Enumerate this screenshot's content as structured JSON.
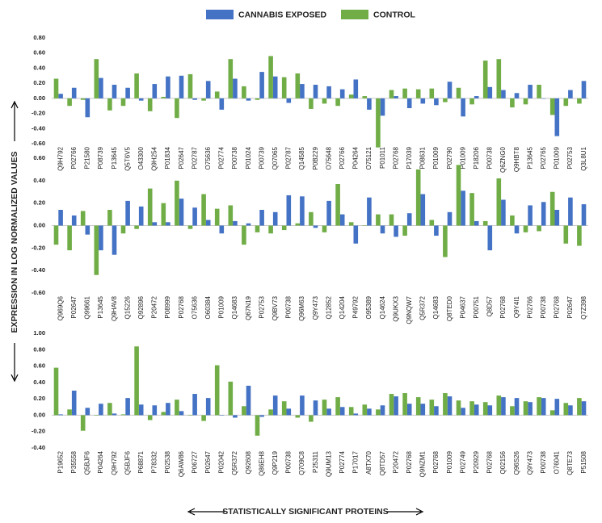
{
  "chart_data": [
    {
      "type": "bar",
      "ylabel": "EXPRESSION IN LOG NORMALIZED VALUES",
      "categories": [
        "Q9H792",
        "P02766",
        "P21580",
        "P08739",
        "P13645",
        "Q5T6V5",
        "O43300",
        "Q9H254",
        "P01834",
        "P02647",
        "P02787",
        "O75636",
        "P02774",
        "P00738",
        "P01024",
        "P00739",
        "Q07065",
        "P02787",
        "Q14585",
        "P0B229",
        "O75648",
        "P02766",
        "P04264",
        "O75121",
        "P01011",
        "P02768",
        "P17039",
        "P08631",
        "P01009",
        "P02790",
        "P01009",
        "P18206",
        "P00738",
        "Q6ZNG0",
        "Q9HBT8",
        "P13645",
        "P02765",
        "P01009",
        "P02753",
        "Q3L8U1"
      ],
      "series": [
        {
          "name": "CANNABIS EXPOSED",
          "color": "#4472c4",
          "values": [
            0.06,
            0.14,
            -0.25,
            0.27,
            0.18,
            0.14,
            -0.03,
            0.19,
            0.29,
            0.3,
            -0.02,
            0.23,
            -0.15,
            0.26,
            -0.03,
            0.35,
            0.29,
            -0.06,
            0.19,
            0.18,
            0.16,
            0.12,
            0.25,
            -0.15,
            -0.23,
            0.03,
            -0.13,
            -0.07,
            -0.09,
            0.22,
            -0.24,
            0.03,
            0.15,
            0.11,
            0.07,
            0.18,
            0.0,
            -0.5,
            0.11,
            0.23
          ]
        },
        {
          "name": "CONTROL",
          "color": "#70ad47",
          "values": [
            0.26,
            -0.1,
            -0.02,
            0.52,
            -0.16,
            -0.1,
            0.33,
            -0.17,
            0.02,
            -0.26,
            0.32,
            -0.03,
            0.09,
            0.52,
            0.16,
            -0.02,
            0.56,
            0.28,
            0.33,
            -0.14,
            -0.07,
            -0.1,
            0.05,
            0.03,
            -0.65,
            0.11,
            0.13,
            0.12,
            0.13,
            -0.05,
            0.14,
            -0.08,
            0.5,
            0.52,
            -0.12,
            -0.08,
            0.18,
            -0.22,
            -0.1,
            -0.07
          ]
        }
      ],
      "ylim": [
        -0.6,
        0.8
      ],
      "yticks": [
        {
          "value": -0.6,
          "label": "-0.60"
        },
        {
          "value": -0.4,
          "label": "-0.40"
        },
        {
          "value": -0.2,
          "label": "-0.20"
        },
        {
          "value": 0,
          "label": "0.00"
        },
        {
          "value": 0.2,
          "label": "0.20"
        },
        {
          "value": 0.4,
          "label": "0.40"
        },
        {
          "value": 0.6,
          "label": "0.60"
        },
        {
          "value": 0.8,
          "label": "0.80"
        }
      ]
    },
    {
      "type": "bar",
      "categories": [
        "Q969Q6",
        "P02647",
        "Q99661",
        "P13645",
        "Q9HAV8",
        "Q15226",
        "Q92896",
        "P20472",
        "P08999",
        "P02768",
        "O75636",
        "O60384",
        "P01009",
        "Q14683",
        "Q67N19",
        "P02753",
        "Q9BV73",
        "P00738",
        "Q96M63",
        "Q9Y473",
        "Q12852",
        "Q14204",
        "P49792",
        "O95389",
        "Q14624",
        "Q9UKX3",
        "Q9NQW7",
        "Q5R372",
        "Q14683",
        "Q8TED0",
        "P04637",
        "P00751",
        "Q8D57",
        "P02768",
        "Q9Y4I1",
        "P02766",
        "P00738",
        "P02768",
        "P02647",
        "Q7Z398"
      ],
      "series": [
        {
          "color": "#4472c4",
          "values": [
            0.14,
            0.09,
            -0.08,
            -0.22,
            -0.26,
            0.22,
            0.17,
            0.03,
            0.03,
            0.24,
            0.16,
            0.05,
            -0.07,
            0.04,
            0.02,
            0.14,
            0.12,
            0.27,
            0.26,
            -0.02,
            0.22,
            0.1,
            -0.16,
            0.25,
            -0.07,
            -0.1,
            0.11,
            0.28,
            -0.09,
            0.12,
            0.31,
            0.04,
            -0.22,
            0.23,
            -0.07,
            0.18,
            0.21,
            0.14,
            0.25,
            0.19
          ]
        },
        {
          "color": "#70ad47",
          "values": [
            -0.17,
            -0.22,
            0.13,
            -0.44,
            0.14,
            -0.07,
            -0.03,
            0.33,
            0.2,
            0.4,
            -0.03,
            0.28,
            0.15,
            0.18,
            -0.17,
            -0.06,
            -0.07,
            -0.04,
            0.02,
            0.12,
            -0.06,
            0.37,
            0.03,
            0.0,
            0.1,
            0.1,
            -0.09,
            0.5,
            0.05,
            -0.28,
            0.54,
            0.29,
            0.04,
            0.42,
            0.09,
            -0.06,
            -0.05,
            0.3,
            -0.16,
            -0.18
          ]
        }
      ],
      "ylim": [
        -0.6,
        0.6
      ],
      "yticks": [
        {
          "value": -0.6,
          "label": "-0.60"
        },
        {
          "value": -0.4,
          "label": "-0.40"
        },
        {
          "value": -0.2,
          "label": "-0.20"
        },
        {
          "value": 0,
          "label": "0.00"
        },
        {
          "value": 0.2,
          "label": "0.20"
        },
        {
          "value": 0.4,
          "label": "0.40"
        },
        {
          "value": 0.6,
          "label": "0.60"
        }
      ]
    },
    {
      "type": "bar",
      "xlabel": "STATISTICALLY SIGNIFICANT PROTEINS",
      "categories": [
        "P19652",
        "P35558",
        "Q5BJF6",
        "P04264",
        "Q9H792",
        "Q5BJF6",
        "P68871",
        "P78332",
        "P02538",
        "Q6AW86",
        "P06727",
        "P02647",
        "P02042",
        "Q5R372",
        "Q92608",
        "Q86EH8",
        "Q9P219",
        "P00738",
        "Q709C8",
        "P25311",
        "Q9UM13",
        "P02774",
        "P17017",
        "A8TX70",
        "Q8TD57",
        "P20472",
        "P02768",
        "Q9NZM1",
        "P02768",
        "P01009",
        "P02749",
        "P20929",
        "P02768",
        "Q02156",
        "Q96S26",
        "Q9Y473",
        "P00738",
        "O76041",
        "Q8TE73",
        "P51508"
      ],
      "series": [
        {
          "color": "#4472c4",
          "values": [
            0.01,
            0.3,
            0.09,
            0.14,
            0.02,
            0.21,
            0.13,
            0.12,
            0.15,
            0.05,
            0.26,
            0.21,
            0.0,
            -0.03,
            0.36,
            -0.02,
            0.24,
            0.08,
            0.24,
            0.18,
            0.08,
            0.1,
            0.02,
            0.08,
            0.12,
            0.23,
            0.14,
            0.14,
            0.11,
            0.23,
            0.09,
            0.13,
            0.12,
            0.22,
            0.21,
            0.16,
            0.21,
            0.2,
            0.12,
            0.17
          ]
        },
        {
          "color": "#70ad47",
          "values": [
            0.58,
            0.07,
            -0.19,
            0.0,
            0.15,
            0.01,
            0.84,
            -0.06,
            0.04,
            0.19,
            0.0,
            -0.07,
            0.61,
            0.41,
            0.11,
            -0.25,
            0.07,
            0.17,
            -0.03,
            -0.08,
            0.19,
            0.22,
            0.1,
            0.13,
            0.07,
            0.26,
            0.27,
            0.22,
            0.19,
            0.27,
            0.18,
            0.17,
            0.16,
            0.24,
            0.11,
            0.17,
            0.22,
            0.06,
            0.15,
            0.21
          ]
        }
      ],
      "ylim": [
        -0.4,
        1.0
      ],
      "yticks": [
        {
          "value": -0.4,
          "label": "-0.40"
        },
        {
          "value": -0.2,
          "label": "-0.20"
        },
        {
          "value": 0,
          "label": "0.00"
        },
        {
          "value": 0.2,
          "label": "0.20"
        },
        {
          "value": 0.4,
          "label": "0.40"
        },
        {
          "value": 0.6,
          "label": "0.60"
        },
        {
          "value": 0.8,
          "label": "0.80"
        },
        {
          "value": 1.0,
          "label": "1.00"
        }
      ]
    }
  ]
}
